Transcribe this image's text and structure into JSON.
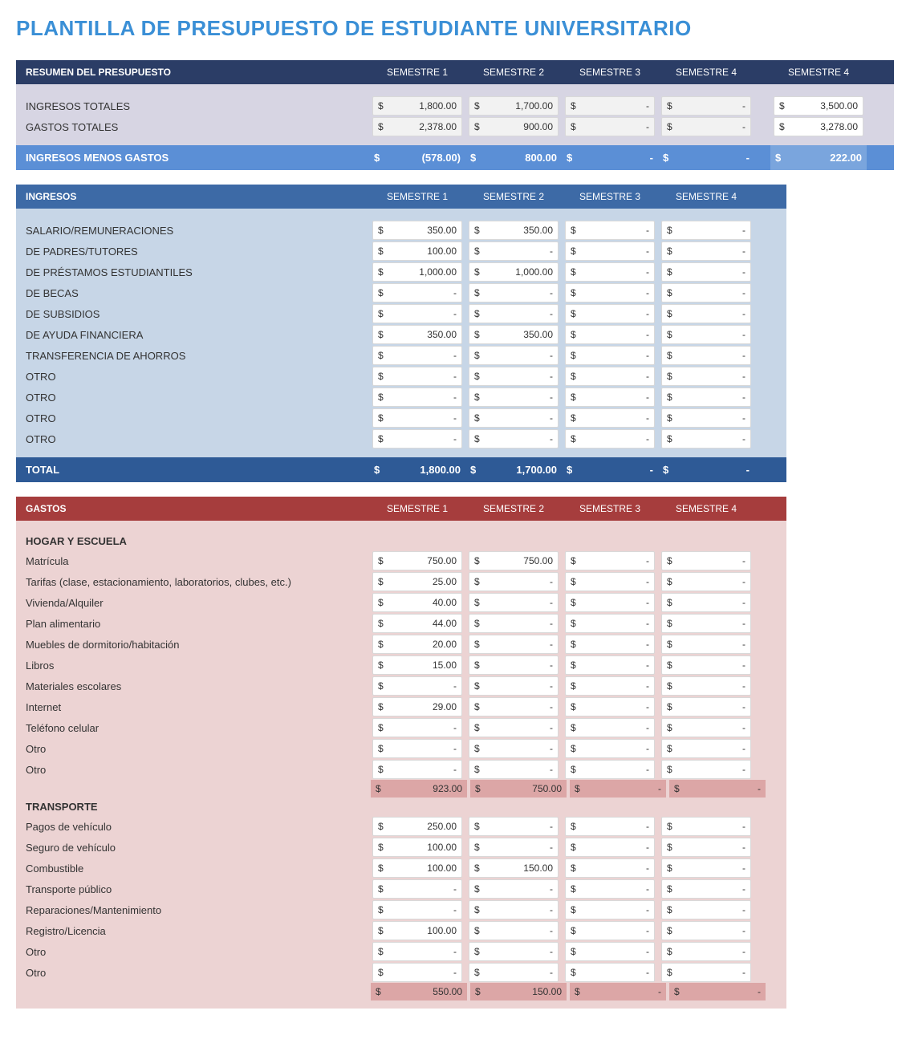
{
  "title": "PLANTILLA DE PRESUPUESTO DE ESTUDIANTE UNIVERSITARIO",
  "currency": "$",
  "colors": {
    "title": "#3a8fd6",
    "summary_header": "#2b3d66",
    "summary_body": "#d7d5e3",
    "summary_total": "#5b8fd6",
    "summary_total_last": "#7aa5dd",
    "ingresos_header": "#3d6aa6",
    "ingresos_body": "#c7d6e7",
    "ingresos_total": "#2e5a96",
    "gastos_header": "#a63d3d",
    "gastos_body": "#ecd3d3",
    "gastos_subtotal": "#dca6a6"
  },
  "summary": {
    "header": "RESUMEN DEL PRESUPUESTO",
    "columns": [
      "SEMESTRE 1",
      "SEMESTRE 2",
      "SEMESTRE 3",
      "SEMESTRE 4",
      "SEMESTRE 4"
    ],
    "rows": [
      {
        "label": "INGRESOS TOTALES",
        "values": [
          "1,800.00",
          "1,700.00",
          "-",
          "-"
        ],
        "total": "3,500.00"
      },
      {
        "label": "GASTOS TOTALES",
        "values": [
          "2,378.00",
          "900.00",
          "-",
          "-"
        ],
        "total": "3,278.00"
      }
    ],
    "total": {
      "label": "INGRESOS MENOS GASTOS",
      "values": [
        "(578.00)",
        "800.00",
        "-",
        "-"
      ],
      "total": "222.00"
    }
  },
  "ingresos": {
    "header": "INGRESOS",
    "columns": [
      "SEMESTRE 1",
      "SEMESTRE 2",
      "SEMESTRE 3",
      "SEMESTRE 4"
    ],
    "rows": [
      {
        "label": "SALARIO/REMUNERACIONES",
        "values": [
          "350.00",
          "350.00",
          "-",
          "-"
        ]
      },
      {
        "label": "DE PADRES/TUTORES",
        "values": [
          "100.00",
          "-",
          "-",
          "-"
        ]
      },
      {
        "label": "DE PRÉSTAMOS ESTUDIANTILES",
        "values": [
          "1,000.00",
          "1,000.00",
          "-",
          "-"
        ]
      },
      {
        "label": "DE BECAS",
        "values": [
          "-",
          "-",
          "-",
          "-"
        ]
      },
      {
        "label": "DE SUBSIDIOS",
        "values": [
          "-",
          "-",
          "-",
          "-"
        ]
      },
      {
        "label": "DE AYUDA FINANCIERA",
        "values": [
          "350.00",
          "350.00",
          "-",
          "-"
        ]
      },
      {
        "label": "TRANSFERENCIA DE AHORROS",
        "values": [
          "-",
          "-",
          "-",
          "-"
        ]
      },
      {
        "label": "OTRO",
        "values": [
          "-",
          "-",
          "-",
          "-"
        ]
      },
      {
        "label": "OTRO",
        "values": [
          "-",
          "-",
          "-",
          "-"
        ]
      },
      {
        "label": "OTRO",
        "values": [
          "-",
          "-",
          "-",
          "-"
        ]
      },
      {
        "label": "OTRO",
        "values": [
          "-",
          "-",
          "-",
          "-"
        ]
      }
    ],
    "total": {
      "label": "TOTAL",
      "values": [
        "1,800.00",
        "1,700.00",
        "-",
        "-"
      ]
    }
  },
  "gastos": {
    "header": "GASTOS",
    "columns": [
      "SEMESTRE 1",
      "SEMESTRE 2",
      "SEMESTRE 3",
      "SEMESTRE 4"
    ],
    "groups": [
      {
        "name": "HOGAR Y ESCUELA",
        "rows": [
          {
            "label": "Matrícula",
            "values": [
              "750.00",
              "750.00",
              "-",
              "-"
            ]
          },
          {
            "label": "Tarifas (clase, estacionamiento, laboratorios, clubes, etc.)",
            "values": [
              "25.00",
              "-",
              "-",
              "-"
            ]
          },
          {
            "label": "Vivienda/Alquiler",
            "values": [
              "40.00",
              "-",
              "-",
              "-"
            ]
          },
          {
            "label": "Plan alimentario",
            "values": [
              "44.00",
              "-",
              "-",
              "-"
            ]
          },
          {
            "label": "Muebles de dormitorio/habitación",
            "values": [
              "20.00",
              "-",
              "-",
              "-"
            ]
          },
          {
            "label": "Libros",
            "values": [
              "15.00",
              "-",
              "-",
              "-"
            ]
          },
          {
            "label": "Materiales escolares",
            "values": [
              "-",
              "-",
              "-",
              "-"
            ]
          },
          {
            "label": "Internet",
            "values": [
              "29.00",
              "-",
              "-",
              "-"
            ]
          },
          {
            "label": "Teléfono celular",
            "values": [
              "-",
              "-",
              "-",
              "-"
            ]
          },
          {
            "label": "Otro",
            "values": [
              "-",
              "-",
              "-",
              "-"
            ]
          },
          {
            "label": "Otro",
            "values": [
              "-",
              "-",
              "-",
              "-"
            ]
          }
        ],
        "subtotal": [
          "923.00",
          "750.00",
          "-",
          "-"
        ]
      },
      {
        "name": "TRANSPORTE",
        "rows": [
          {
            "label": "Pagos de vehículo",
            "values": [
              "250.00",
              "-",
              "-",
              "-"
            ]
          },
          {
            "label": "Seguro de vehículo",
            "values": [
              "100.00",
              "-",
              "-",
              "-"
            ]
          },
          {
            "label": "Combustible",
            "values": [
              "100.00",
              "150.00",
              "-",
              "-"
            ]
          },
          {
            "label": "Transporte público",
            "values": [
              "-",
              "-",
              "-",
              "-"
            ]
          },
          {
            "label": "Reparaciones/Mantenimiento",
            "values": [
              "-",
              "-",
              "-",
              "-"
            ]
          },
          {
            "label": "Registro/Licencia",
            "values": [
              "100.00",
              "-",
              "-",
              "-"
            ]
          },
          {
            "label": "Otro",
            "values": [
              "-",
              "-",
              "-",
              "-"
            ]
          },
          {
            "label": "Otro",
            "values": [
              "-",
              "-",
              "-",
              "-"
            ]
          }
        ],
        "subtotal": [
          "550.00",
          "150.00",
          "-",
          "-"
        ]
      }
    ]
  }
}
